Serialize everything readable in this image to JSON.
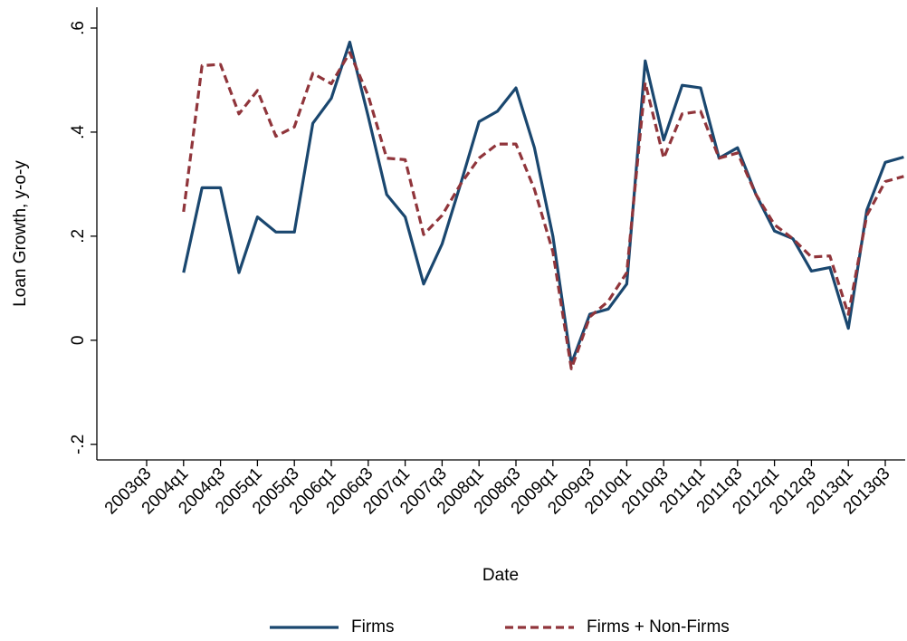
{
  "chart_data": {
    "type": "line",
    "x_label": "Date",
    "y_label": "Loan Growth, y-o-y",
    "categories": [
      "2003q3",
      null,
      "2004q1",
      null,
      "2004q3",
      null,
      "2005q1",
      null,
      "2005q3",
      null,
      "2006q1",
      null,
      "2006q3",
      null,
      "2007q1",
      null,
      "2007q3",
      null,
      "2008q1",
      null,
      "2008q3",
      null,
      "2009q1",
      null,
      "2009q3",
      null,
      "2010q1",
      null,
      "2010q3",
      null,
      "2011q1",
      null,
      "2011q3",
      null,
      "2012q1",
      null,
      "2012q3",
      null,
      "2013q1",
      null,
      "2013q3",
      null
    ],
    "series": [
      {
        "name": "Firms",
        "color": "#1a476f",
        "dash": false,
        "values": [
          null,
          null,
          0.13,
          0.293,
          0.293,
          0.13,
          0.237,
          0.208,
          0.208,
          0.417,
          0.465,
          0.573,
          0.43,
          0.28,
          0.237,
          0.108,
          0.185,
          0.3,
          0.42,
          0.44,
          0.485,
          0.37,
          0.2,
          -0.045,
          0.05,
          0.06,
          0.108,
          0.537,
          0.385,
          0.49,
          0.485,
          0.35,
          0.37,
          0.28,
          0.21,
          0.195,
          0.133,
          0.14,
          0.023,
          0.25,
          0.342,
          0.352
        ]
      },
      {
        "name": "Firms + Non-Firms",
        "color": "#90353b",
        "dash": true,
        "values": [
          null,
          null,
          0.247,
          0.528,
          0.53,
          0.435,
          0.48,
          0.392,
          0.41,
          0.513,
          0.493,
          0.553,
          0.47,
          0.35,
          0.347,
          0.203,
          0.24,
          0.3,
          0.35,
          0.377,
          0.377,
          0.29,
          0.17,
          -0.055,
          0.045,
          0.075,
          0.13,
          0.495,
          0.35,
          0.435,
          0.44,
          0.35,
          0.36,
          0.28,
          0.222,
          0.195,
          0.16,
          0.162,
          0.05,
          0.24,
          0.305,
          0.315
        ]
      }
    ],
    "ylim": [
      -0.23,
      0.64
    ],
    "yticks": [
      {
        "value": -0.2,
        "label": "-.2"
      },
      0,
      {
        "value": 0.2,
        "label": ".2"
      },
      {
        "value": 0.4,
        "label": ".4"
      },
      {
        "value": 0.6,
        "label": ".6"
      }
    ],
    "grid": false,
    "legend": "bottom"
  }
}
